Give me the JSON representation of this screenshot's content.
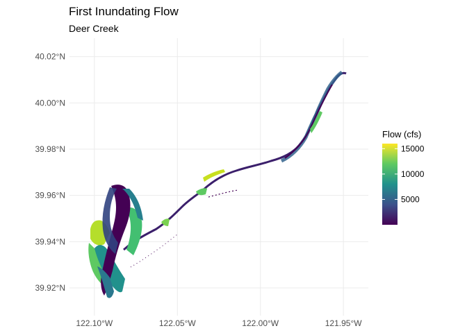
{
  "title": "First Inundating Flow",
  "subtitle": "Deer Creek",
  "chart_data": {
    "type": "map",
    "x_ticks": [
      {
        "value": -122.1,
        "label": "122.10°W"
      },
      {
        "value": -122.05,
        "label": "122.05°W"
      },
      {
        "value": -122.0,
        "label": "122.00°W"
      },
      {
        "value": -121.95,
        "label": "121.95°W"
      }
    ],
    "y_ticks": [
      {
        "value": 39.92,
        "label": "39.92°N"
      },
      {
        "value": 39.94,
        "label": "39.94°N"
      },
      {
        "value": 39.96,
        "label": "39.96°N"
      },
      {
        "value": 39.98,
        "label": "39.98°N"
      },
      {
        "value": 40.0,
        "label": "40.00°N"
      },
      {
        "value": 40.02,
        "label": "40.02°N"
      }
    ],
    "xlim": [
      -122.115,
      -121.935
    ],
    "ylim": [
      39.908,
      40.028
    ],
    "grid": true,
    "legend": {
      "title": "Flow (cfs)",
      "placement": "right",
      "min": 0,
      "max": 16000,
      "ticks": [
        5000,
        10000,
        15000
      ],
      "colors": [
        "#440154",
        "#3b528b",
        "#21918c",
        "#5ec962",
        "#fde725"
      ]
    }
  }
}
